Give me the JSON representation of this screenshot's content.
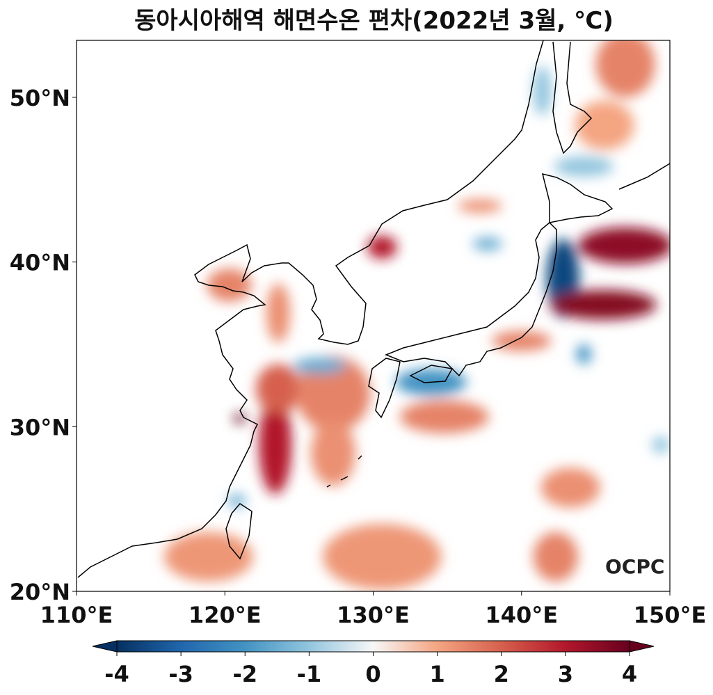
{
  "title": "동아시아해역 해면수온 편차(2022년 3월, ℃)",
  "logo": "OCPC",
  "chart_data": {
    "type": "heatmap",
    "title": "동아시아해역 해면수온 편차(2022년 3월, ℃)",
    "unit": "℃",
    "lon_range": [
      110,
      150
    ],
    "lat_range": [
      20,
      53.5
    ],
    "x_ticks": [
      "110°E",
      "120°E",
      "130°E",
      "140°E",
      "150°E"
    ],
    "x_tick_values": [
      110,
      120,
      130,
      140,
      150
    ],
    "y_ticks": [
      "20°N",
      "30°N",
      "40°N",
      "50°N"
    ],
    "y_tick_values": [
      20,
      30,
      40,
      50
    ],
    "colorbar": {
      "ticks": [
        "-4",
        "-3",
        "-2",
        "-1",
        "0",
        "1",
        "2",
        "3",
        "4"
      ],
      "range": [
        -4,
        4
      ],
      "extend": "both",
      "colormap": [
        "#053061",
        "#2166ac",
        "#4393c3",
        "#92c5de",
        "#f7f7f7",
        "#f4a582",
        "#d6604d",
        "#b2182b",
        "#67001f"
      ]
    },
    "anomaly_regions": [
      {
        "lon": 142.8,
        "lat": 39.0,
        "rx": 1.1,
        "ry": 2.4,
        "value": -3.6
      },
      {
        "lon": 147.0,
        "lat": 41.0,
        "rx": 3.2,
        "ry": 1.1,
        "value": 3.5
      },
      {
        "lon": 145.5,
        "lat": 37.4,
        "rx": 3.6,
        "ry": 0.9,
        "value": 3.6
      },
      {
        "lon": 123.4,
        "lat": 28.9,
        "rx": 1.1,
        "ry": 3.0,
        "value": 3.0
      },
      {
        "lon": 123.6,
        "lat": 32.3,
        "rx": 1.5,
        "ry": 1.5,
        "value": 2.0
      },
      {
        "lon": 127.3,
        "lat": 32.0,
        "rx": 2.5,
        "ry": 2.3,
        "value": 1.5
      },
      {
        "lon": 127.3,
        "lat": 28.4,
        "rx": 1.5,
        "ry": 2.0,
        "value": 1.3
      },
      {
        "lon": 133.9,
        "lat": 32.7,
        "rx": 2.4,
        "ry": 0.8,
        "value": -2.0
      },
      {
        "lon": 126.4,
        "lat": 33.7,
        "rx": 1.8,
        "ry": 0.5,
        "value": -1.5
      },
      {
        "lon": 130.6,
        "lat": 40.9,
        "rx": 1.0,
        "ry": 0.7,
        "value": 3.0
      },
      {
        "lon": 120.3,
        "lat": 38.6,
        "rx": 1.5,
        "ry": 1.0,
        "value": 1.5
      },
      {
        "lon": 123.6,
        "lat": 36.9,
        "rx": 0.8,
        "ry": 1.8,
        "value": 1.3
      },
      {
        "lon": 134.8,
        "lat": 30.6,
        "rx": 3.0,
        "ry": 1.0,
        "value": 1.5
      },
      {
        "lon": 130.6,
        "lat": 22.1,
        "rx": 4.0,
        "ry": 2.0,
        "value": 1.2
      },
      {
        "lon": 118.9,
        "lat": 22.1,
        "rx": 3.0,
        "ry": 1.5,
        "value": 1.2
      },
      {
        "lon": 143.3,
        "lat": 26.3,
        "rx": 2.0,
        "ry": 1.2,
        "value": 1.3
      },
      {
        "lon": 142.3,
        "lat": 22.1,
        "rx": 1.5,
        "ry": 1.5,
        "value": 1.5
      },
      {
        "lon": 147.0,
        "lat": 52.0,
        "rx": 2.0,
        "ry": 2.0,
        "value": 1.5
      },
      {
        "lon": 145.6,
        "lat": 48.3,
        "rx": 2.0,
        "ry": 1.5,
        "value": 1.0
      },
      {
        "lon": 141.4,
        "lat": 50.4,
        "rx": 0.6,
        "ry": 1.5,
        "value": -1.0
      },
      {
        "lon": 144.2,
        "lat": 45.8,
        "rx": 2.0,
        "ry": 0.6,
        "value": -1.0
      },
      {
        "lon": 137.7,
        "lat": 41.1,
        "rx": 1.0,
        "ry": 0.4,
        "value": -1.5
      },
      {
        "lon": 144.2,
        "lat": 34.4,
        "rx": 0.5,
        "ry": 0.6,
        "value": -2.0
      },
      {
        "lon": 140.0,
        "lat": 35.2,
        "rx": 2.0,
        "ry": 0.6,
        "value": 1.5
      },
      {
        "lon": 137.2,
        "lat": 43.4,
        "rx": 1.5,
        "ry": 0.4,
        "value": 1.3
      },
      {
        "lon": 120.8,
        "lat": 25.5,
        "rx": 0.6,
        "ry": 0.4,
        "value": -1.5
      },
      {
        "lon": 149.4,
        "lat": 28.9,
        "rx": 0.6,
        "ry": 0.5,
        "value": -1.0
      },
      {
        "lon": 121.0,
        "lat": 30.5,
        "rx": 0.4,
        "ry": 0.3,
        "value": 4.0
      }
    ]
  }
}
